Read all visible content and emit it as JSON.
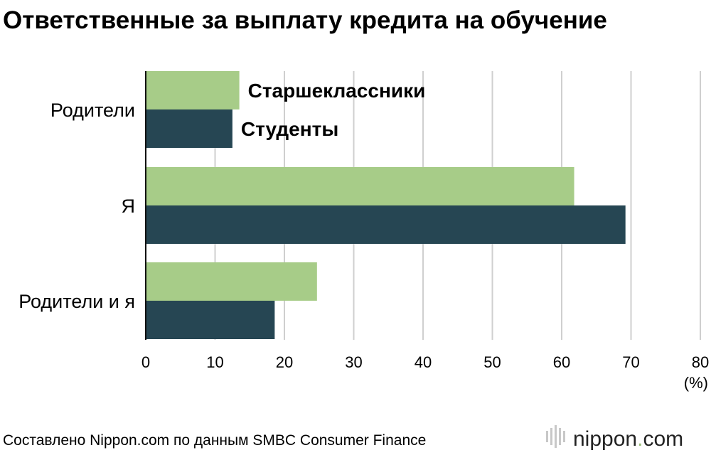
{
  "chart_data": {
    "type": "bar",
    "orientation": "horizontal",
    "title": "Ответственные за выплату кредита на обучение",
    "categories": [
      "Родители",
      "Я",
      "Родители и я"
    ],
    "series": [
      {
        "name": "Старшеклассники",
        "color": "#a7cc88",
        "values": [
          13.5,
          61.8,
          24.7
        ]
      },
      {
        "name": "Студенты",
        "color": "#264653",
        "values": [
          12.5,
          69.2,
          18.6
        ]
      }
    ],
    "xlim": [
      0,
      80
    ],
    "xticks": [
      0,
      10,
      20,
      30,
      40,
      50,
      60,
      70,
      80
    ],
    "xunit": "(%)",
    "grid": true,
    "legend": "inline-first-category"
  },
  "source": "Составлено Nippon.com по данным SMBC Consumer Finance",
  "logo": {
    "name": "nippon",
    "dot": ".",
    "tld": "com"
  }
}
